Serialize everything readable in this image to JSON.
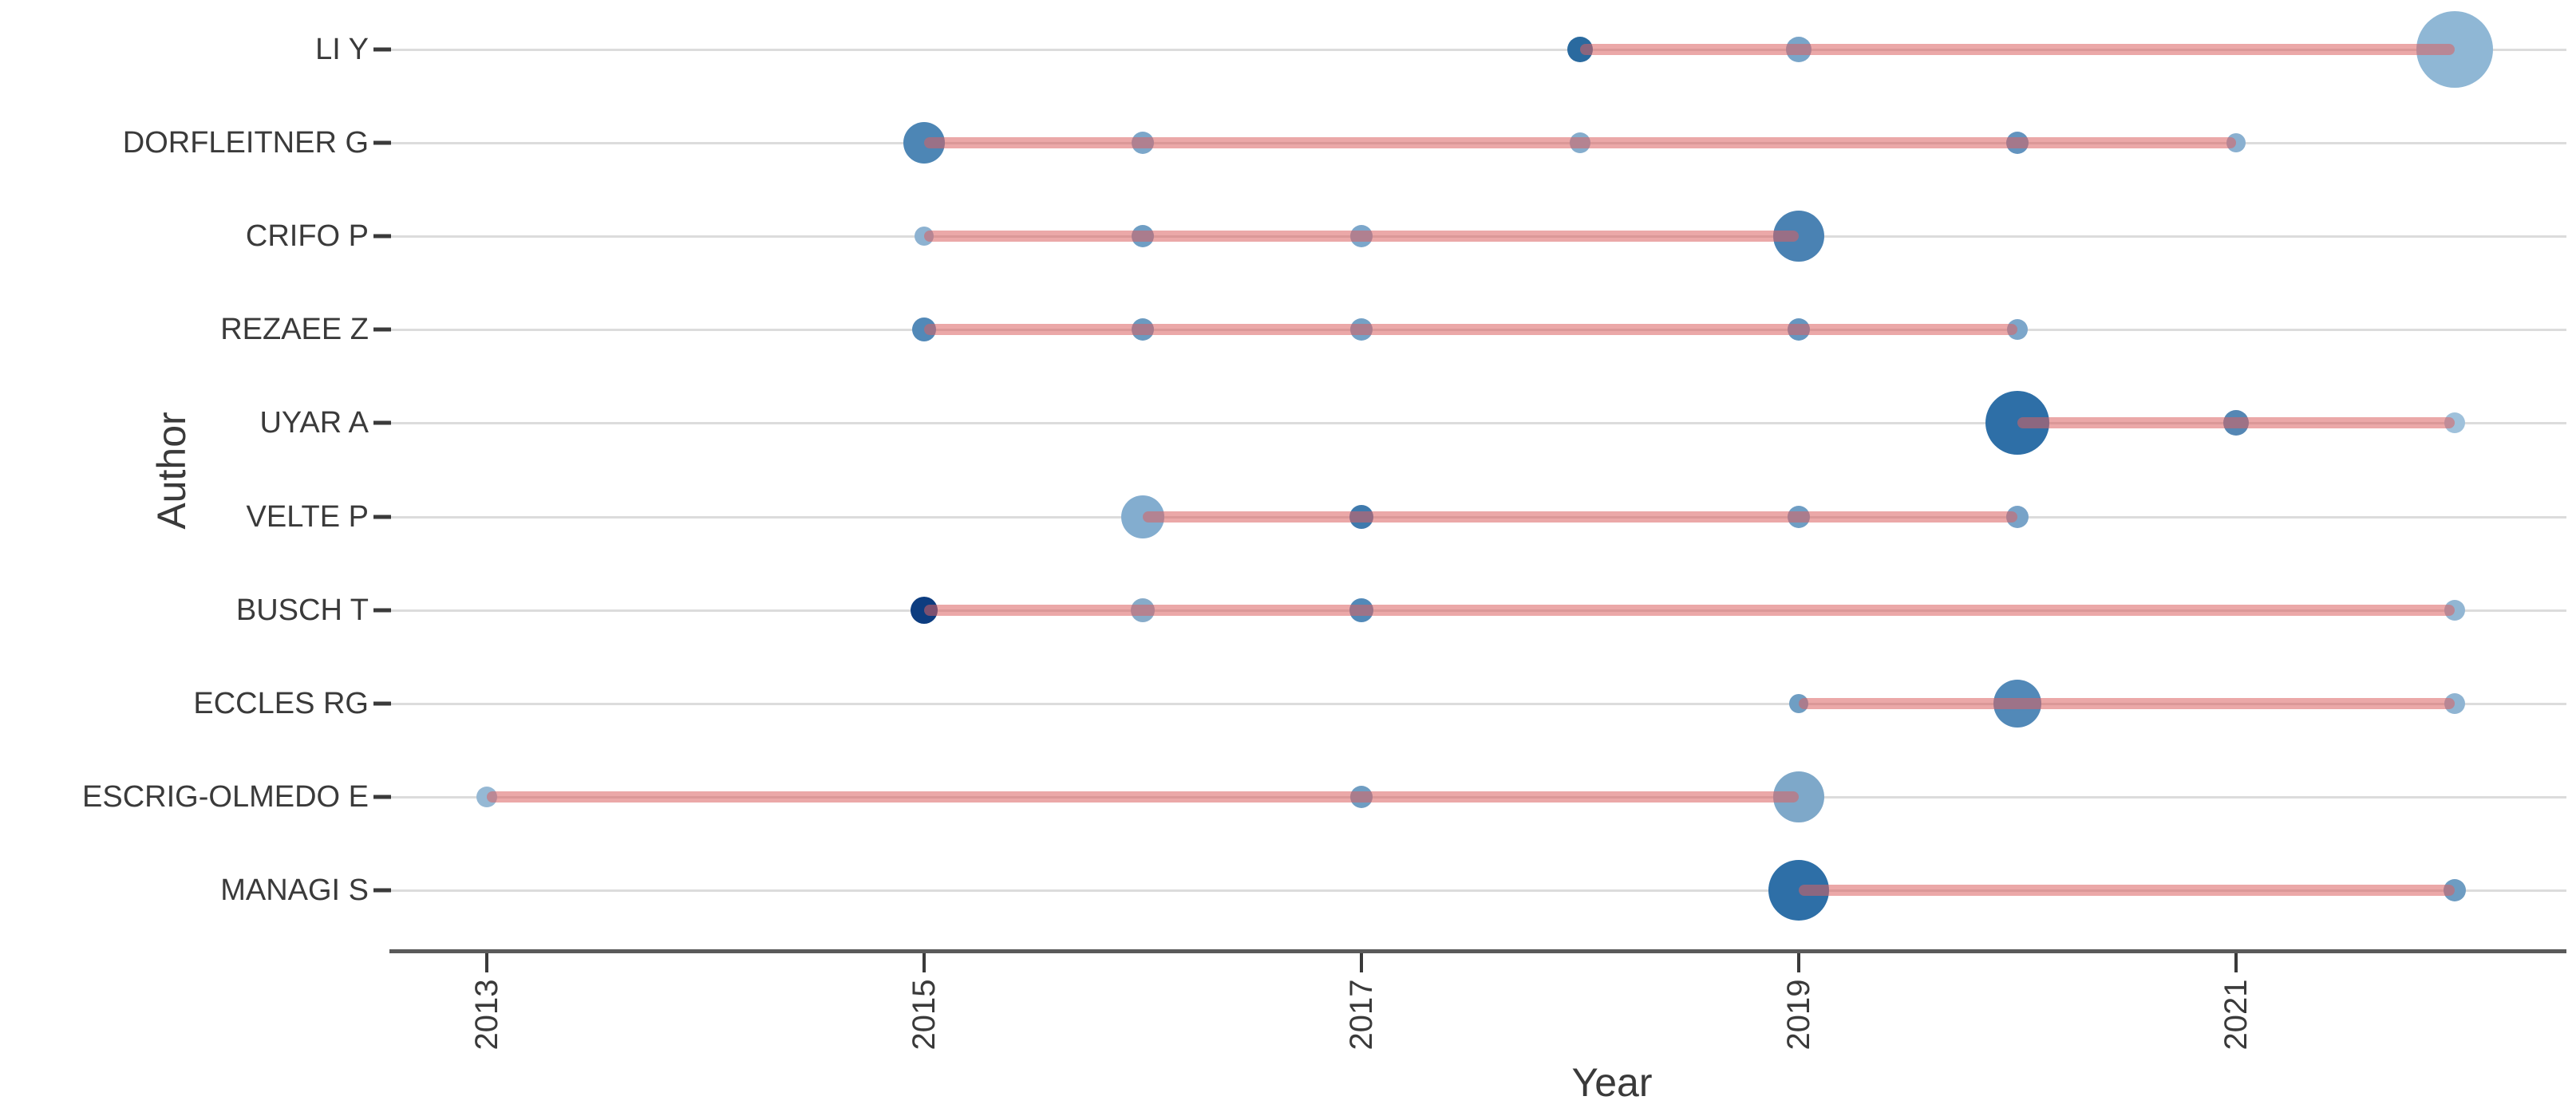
{
  "chart_data": {
    "type": "scatter",
    "subtype": "bubble-timeline",
    "title": "",
    "xlabel": "Year",
    "ylabel": "Author",
    "x_ticks": [
      "2013",
      "2015",
      "2017",
      "2019",
      "2021"
    ],
    "x_tick_years": [
      2013,
      2015,
      2017,
      2019,
      2021
    ],
    "x_range": [
      2012.56,
      2022.5
    ],
    "grid": "horizontal-only",
    "legend_position": "none",
    "styles": {
      "timeline_color": "rgba(219,97,97,0.55)",
      "grid_color": "#dcdcdc",
      "axis_color": "#5a5a5a",
      "tick_color": "#3a3a3a",
      "text_color": "#3a3a3a",
      "bubble_dark": "#0d3d80",
      "bubble_mid": "#2e6fa7",
      "bubble_light": "#9fc1db"
    },
    "authors": [
      {
        "name": "LI Y",
        "active_from": 2018,
        "active_to": 2022,
        "points": [
          {
            "year": 2018,
            "r": 16,
            "color": "#2a6a9f"
          },
          {
            "year": 2019,
            "r": 16,
            "color": "#79a5c9"
          },
          {
            "year": 2022,
            "r": 48,
            "color": "#8fb7d5"
          }
        ]
      },
      {
        "name": "DORFLEITNER G",
        "active_from": 2015,
        "active_to": 2021,
        "points": [
          {
            "year": 2015,
            "r": 26,
            "color": "#4d86b5"
          },
          {
            "year": 2016,
            "r": 14,
            "color": "#7ca7ca"
          },
          {
            "year": 2018,
            "r": 13,
            "color": "#85adcd"
          },
          {
            "year": 2020,
            "r": 14,
            "color": "#6394bf"
          },
          {
            "year": 2021,
            "r": 12,
            "color": "#8ab0d0"
          }
        ]
      },
      {
        "name": "CRIFO P",
        "active_from": 2015,
        "active_to": 2019,
        "points": [
          {
            "year": 2015,
            "r": 12,
            "color": "#8db2d1"
          },
          {
            "year": 2016,
            "r": 14,
            "color": "#6f9ec4"
          },
          {
            "year": 2017,
            "r": 14,
            "color": "#7ca7cb"
          },
          {
            "year": 2019,
            "r": 32,
            "color": "#4a82b3"
          }
        ]
      },
      {
        "name": "REZAEE Z",
        "active_from": 2015,
        "active_to": 2020,
        "points": [
          {
            "year": 2015,
            "r": 15,
            "color": "#5289b8"
          },
          {
            "year": 2016,
            "r": 14,
            "color": "#6b9ac0"
          },
          {
            "year": 2017,
            "r": 14,
            "color": "#74a1c6"
          },
          {
            "year": 2019,
            "r": 14,
            "color": "#6596c0"
          },
          {
            "year": 2020,
            "r": 13,
            "color": "#7ca6ca"
          }
        ]
      },
      {
        "name": "UYAR A",
        "active_from": 2020,
        "active_to": 2022,
        "points": [
          {
            "year": 2020,
            "r": 40,
            "color": "#2e6fa7"
          },
          {
            "year": 2021,
            "r": 16,
            "color": "#5587b4"
          },
          {
            "year": 2022,
            "r": 13,
            "color": "#9fc1db"
          }
        ]
      },
      {
        "name": "VELTE P",
        "active_from": 2016,
        "active_to": 2020,
        "points": [
          {
            "year": 2016,
            "r": 27,
            "color": "#83adcf"
          },
          {
            "year": 2017,
            "r": 15,
            "color": "#3f7aad"
          },
          {
            "year": 2019,
            "r": 14,
            "color": "#6f9ec4"
          },
          {
            "year": 2020,
            "r": 14,
            "color": "#78a3c8"
          }
        ]
      },
      {
        "name": "BUSCH T",
        "active_from": 2015,
        "active_to": 2022,
        "points": [
          {
            "year": 2015,
            "r": 17,
            "color": "#0d3d80"
          },
          {
            "year": 2016,
            "r": 15,
            "color": "#87abc9"
          },
          {
            "year": 2017,
            "r": 15,
            "color": "#5289b8"
          },
          {
            "year": 2022,
            "r": 13,
            "color": "#92b6d3"
          }
        ]
      },
      {
        "name": "ECCLES RG",
        "active_from": 2019,
        "active_to": 2022,
        "points": [
          {
            "year": 2019,
            "r": 12,
            "color": "#6f9ec3"
          },
          {
            "year": 2020,
            "r": 30,
            "color": "#5289b8"
          },
          {
            "year": 2022,
            "r": 13,
            "color": "#8fb4d2"
          }
        ]
      },
      {
        "name": "ESCRIG-OLMEDO E",
        "active_from": 2013,
        "active_to": 2019,
        "points": [
          {
            "year": 2013,
            "r": 13,
            "color": "#95b8d4"
          },
          {
            "year": 2017,
            "r": 14,
            "color": "#6f9dc2"
          },
          {
            "year": 2019,
            "r": 32,
            "color": "#7ea8c9"
          }
        ]
      },
      {
        "name": "MANAGI S",
        "active_from": 2019,
        "active_to": 2022,
        "points": [
          {
            "year": 2019,
            "r": 38,
            "color": "#2e6fa7"
          },
          {
            "year": 2022,
            "r": 14,
            "color": "#6d9cc2"
          }
        ]
      }
    ]
  }
}
